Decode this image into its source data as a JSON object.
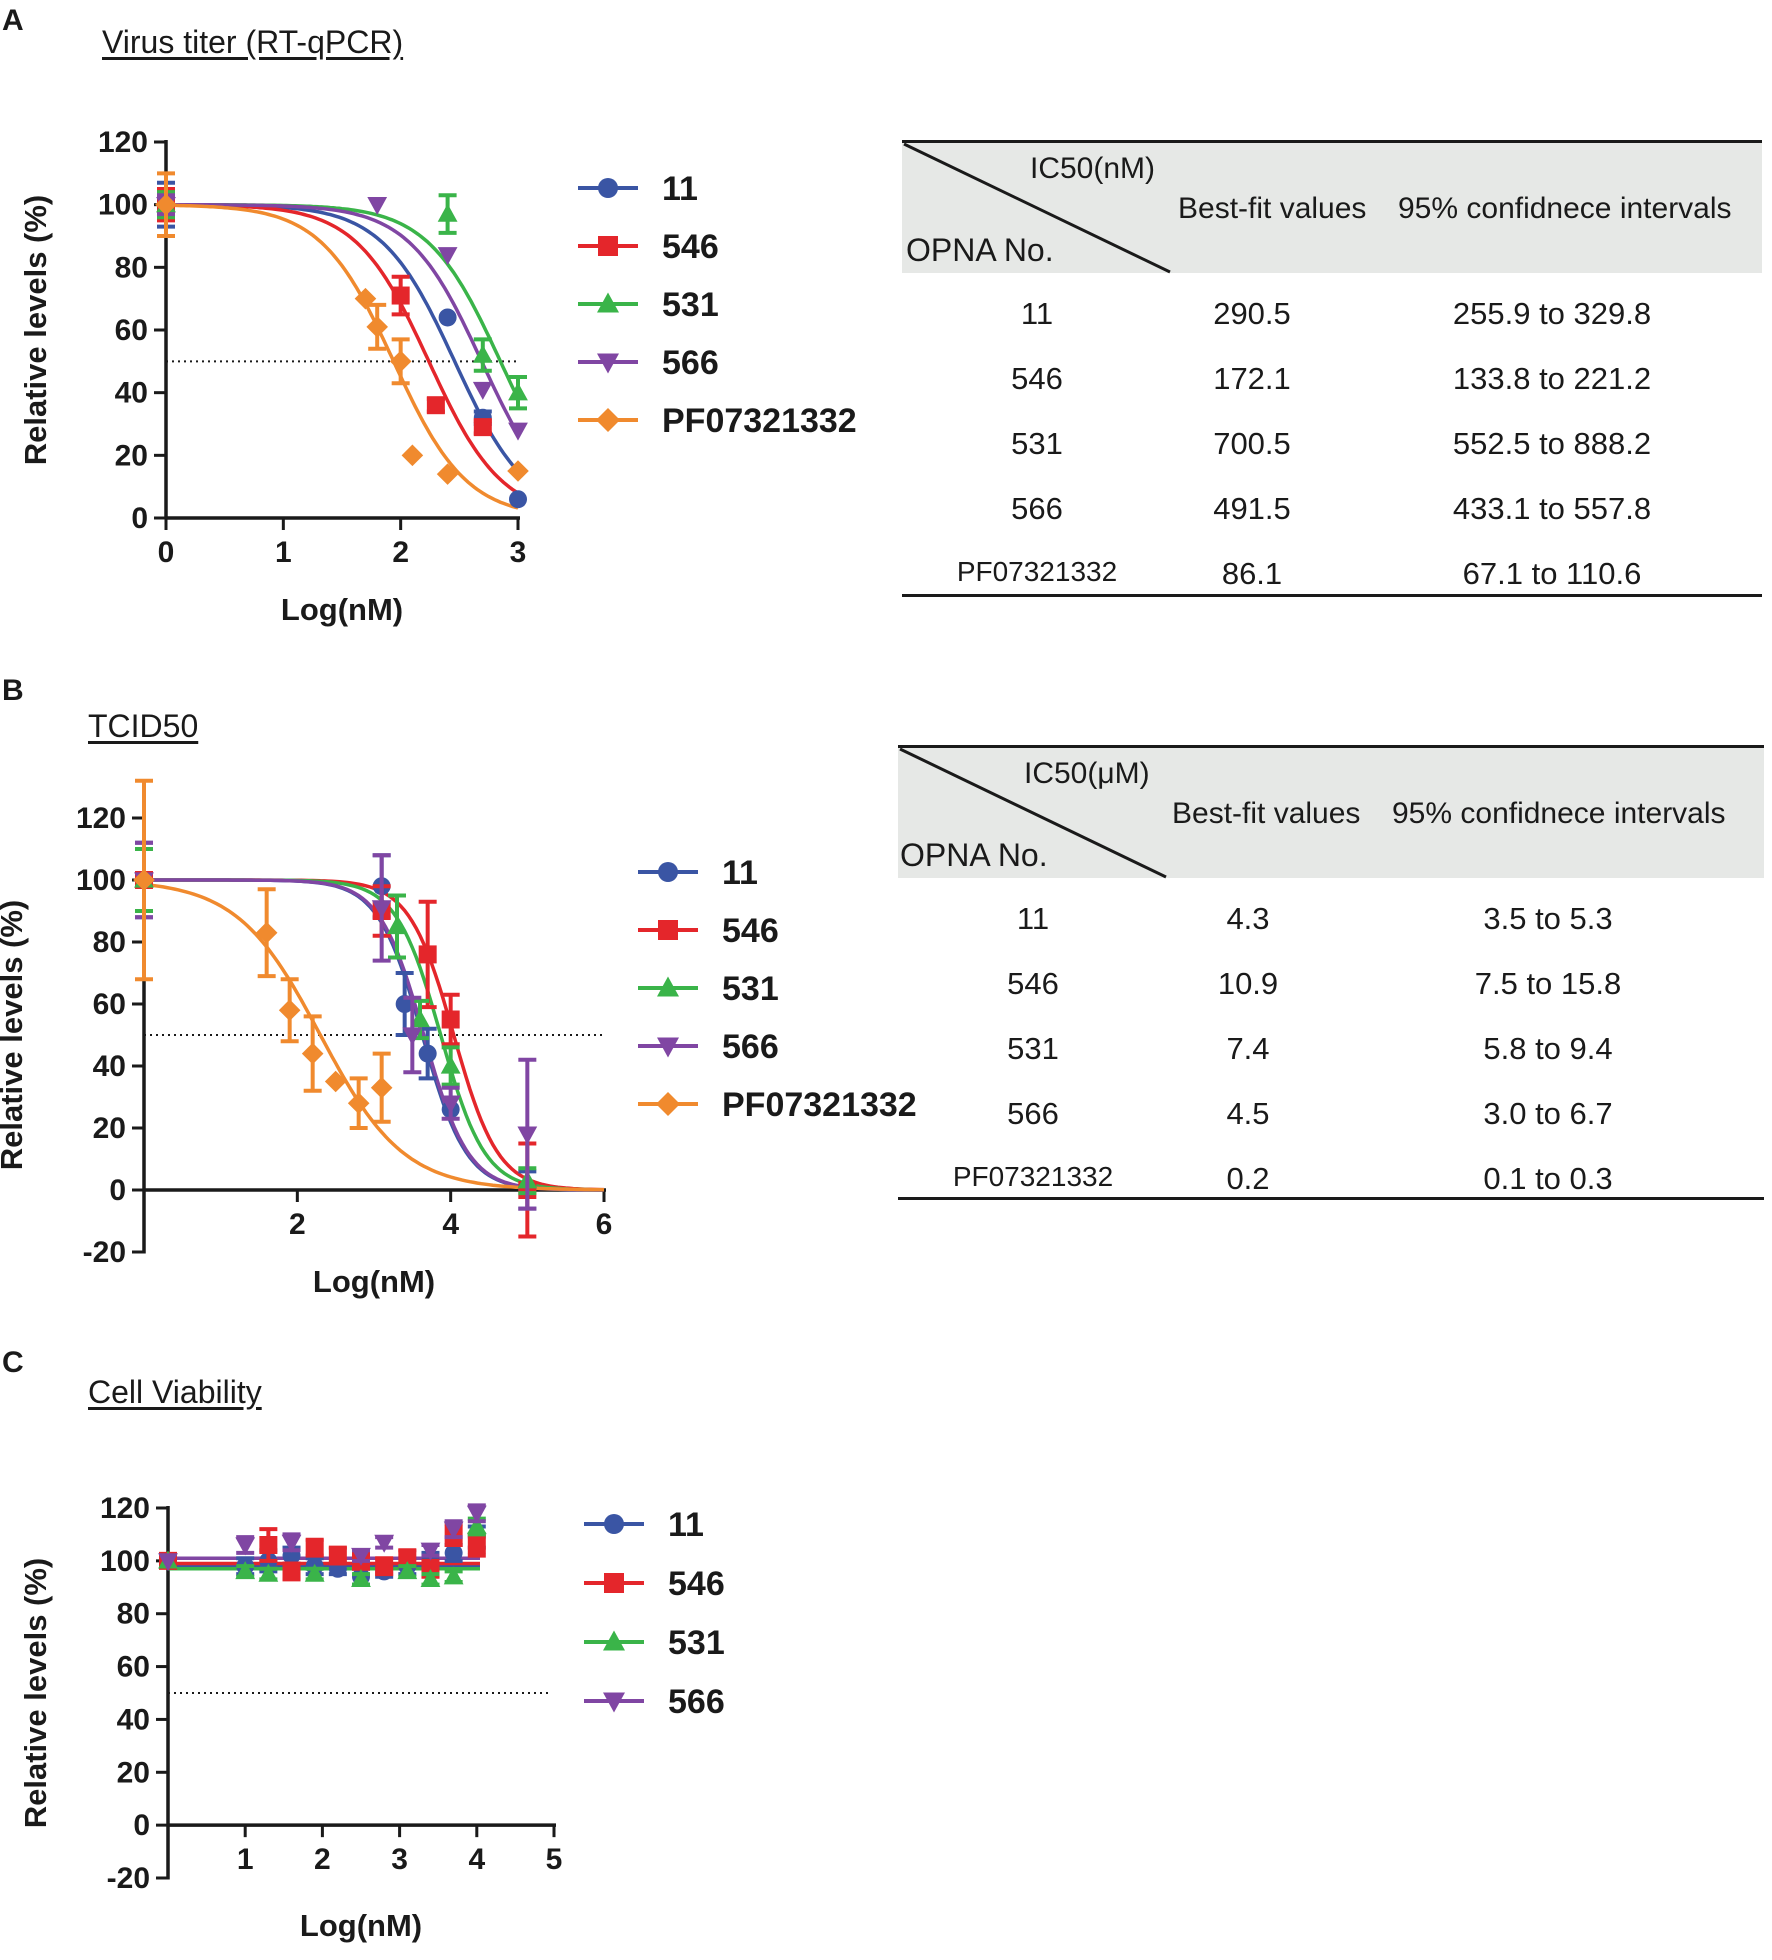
{
  "panels": {
    "A": {
      "letter": "A",
      "title": "Virus titer (RT-qPCR)"
    },
    "B": {
      "letter": "B",
      "title": "TCID50"
    },
    "C": {
      "letter": "C",
      "title": "Cell Viability"
    }
  },
  "tables": {
    "A": {
      "unit_label": "IC50(nM)",
      "row_header": "OPNA No.",
      "col_best": "Best-fit values",
      "col_ci": "95% confidnece intervals",
      "rows": [
        {
          "id": "11",
          "best": "290.5",
          "ci": "255.9 to 329.8"
        },
        {
          "id": "546",
          "best": "172.1",
          "ci": "133.8 to 221.2"
        },
        {
          "id": "531",
          "best": "700.5",
          "ci": "552.5 to 888.2"
        },
        {
          "id": "566",
          "best": "491.5",
          "ci": "433.1 to 557.8"
        },
        {
          "id": "PF07321332",
          "best": "86.1",
          "ci": "67.1 to 110.6"
        }
      ]
    },
    "B": {
      "unit_label": "IC50(μM)",
      "row_header": "OPNA No.",
      "col_best": "Best-fit values",
      "col_ci": "95% confidnece intervals",
      "rows": [
        {
          "id": "11",
          "best": "4.3",
          "ci": "3.5 to 5.3"
        },
        {
          "id": "546",
          "best": "10.9",
          "ci": "7.5 to 15.8"
        },
        {
          "id": "531",
          "best": "7.4",
          "ci": "5.8 to 9.4"
        },
        {
          "id": "566",
          "best": "4.5",
          "ci": "3.0 to 6.7"
        },
        {
          "id": "PF07321332",
          "best": "0.2",
          "ci": "0.1 to 0.3"
        }
      ]
    }
  },
  "chart_data": [
    {
      "panel": "A",
      "type": "scatter",
      "title": "Virus titer (RT-qPCR)",
      "xlabel": "Log(nM)",
      "ylabel": "Relative levels (%)",
      "xlim": [
        0,
        3
      ],
      "ylim": [
        0,
        120
      ],
      "xticks": [
        0,
        1,
        2,
        3
      ],
      "yticks": [
        0,
        20,
        40,
        60,
        80,
        100,
        120
      ],
      "reference_line": 50,
      "series": [
        {
          "name": "11",
          "color": "#3a55a4",
          "marker": "circle",
          "logIC50": 2.46,
          "points": [
            {
              "x": 0,
              "y": 100,
              "err": 7
            },
            {
              "x": 2.4,
              "y": 64,
              "err": 0
            },
            {
              "x": 2.7,
              "y": 32,
              "err": 2
            },
            {
              "x": 3.0,
              "y": 6,
              "err": 0
            }
          ]
        },
        {
          "name": "546",
          "color": "#e4262b",
          "marker": "square",
          "logIC50": 2.24,
          "points": [
            {
              "x": 0,
              "y": 100,
              "err": 5
            },
            {
              "x": 2.0,
              "y": 71,
              "err": 6
            },
            {
              "x": 2.3,
              "y": 36,
              "err": 2
            },
            {
              "x": 2.7,
              "y": 29,
              "err": 2
            }
          ]
        },
        {
          "name": "531",
          "color": "#3ab449",
          "marker": "triangle-up",
          "logIC50": 2.85,
          "points": [
            {
              "x": 0,
              "y": 100,
              "err": 4
            },
            {
              "x": 2.4,
              "y": 97,
              "err": 6
            },
            {
              "x": 2.7,
              "y": 52,
              "err": 5
            },
            {
              "x": 3.0,
              "y": 40,
              "err": 5
            }
          ]
        },
        {
          "name": "566",
          "color": "#8046a3",
          "marker": "triangle-down",
          "logIC50": 2.69,
          "points": [
            {
              "x": 0,
              "y": 100,
              "err": 3
            },
            {
              "x": 1.8,
              "y": 100,
              "err": 0
            },
            {
              "x": 2.4,
              "y": 84,
              "err": 0
            },
            {
              "x": 2.7,
              "y": 41,
              "err": 0
            },
            {
              "x": 3.0,
              "y": 28,
              "err": 0
            }
          ]
        },
        {
          "name": "PF07321332",
          "color": "#f08a2e",
          "marker": "diamond",
          "logIC50": 1.94,
          "points": [
            {
              "x": 0,
              "y": 100,
              "err": 10
            },
            {
              "x": 1.7,
              "y": 70,
              "err": 0
            },
            {
              "x": 1.8,
              "y": 61,
              "err": 7
            },
            {
              "x": 2.0,
              "y": 50,
              "err": 7
            },
            {
              "x": 2.1,
              "y": 20,
              "err": 0
            },
            {
              "x": 2.4,
              "y": 14,
              "err": 0
            },
            {
              "x": 3.0,
              "y": 15,
              "err": 0
            }
          ]
        }
      ]
    },
    {
      "panel": "B",
      "type": "scatter",
      "title": "TCID50",
      "xlabel": "Log(nM)",
      "ylabel": "Relative levels (%)",
      "xlim": [
        0,
        6
      ],
      "ylim": [
        -20,
        120
      ],
      "xticks": [
        2,
        4,
        6
      ],
      "yticks": [
        -20,
        0,
        20,
        40,
        60,
        80,
        100,
        120
      ],
      "reference_line": 50,
      "series": [
        {
          "name": "11",
          "color": "#3a55a4",
          "marker": "circle",
          "logIC50": 3.63,
          "points": [
            {
              "x": 0,
              "y": 100,
              "err": 12
            },
            {
              "x": 3.1,
              "y": 98,
              "err": 10
            },
            {
              "x": 3.4,
              "y": 60,
              "err": 10
            },
            {
              "x": 3.7,
              "y": 44,
              "err": 8
            },
            {
              "x": 4.0,
              "y": 26,
              "err": 0
            },
            {
              "x": 5.0,
              "y": 0,
              "err": 6
            }
          ]
        },
        {
          "name": "546",
          "color": "#e4262b",
          "marker": "square",
          "logIC50": 4.04,
          "points": [
            {
              "x": 0,
              "y": 100,
              "err": 10
            },
            {
              "x": 3.1,
              "y": 90,
              "err": 8
            },
            {
              "x": 3.7,
              "y": 76,
              "err": 17
            },
            {
              "x": 4.0,
              "y": 55,
              "err": 8
            },
            {
              "x": 5.0,
              "y": 0,
              "err": 15
            }
          ]
        },
        {
          "name": "531",
          "color": "#3ab449",
          "marker": "triangle-up",
          "logIC50": 3.87,
          "points": [
            {
              "x": 0,
              "y": 100,
              "err": 10
            },
            {
              "x": 3.3,
              "y": 85,
              "err": 10
            },
            {
              "x": 3.6,
              "y": 55,
              "err": 6
            },
            {
              "x": 4.0,
              "y": 40,
              "err": 6
            },
            {
              "x": 5.0,
              "y": 3,
              "err": 4
            }
          ]
        },
        {
          "name": "566",
          "color": "#8046a3",
          "marker": "triangle-down",
          "logIC50": 3.65,
          "points": [
            {
              "x": 0,
              "y": 100,
              "err": 12
            },
            {
              "x": 3.1,
              "y": 91,
              "err": 17
            },
            {
              "x": 3.5,
              "y": 50,
              "err": 12
            },
            {
              "x": 4.0,
              "y": 28,
              "err": 5
            },
            {
              "x": 5.0,
              "y": 18,
              "err": 24
            }
          ]
        },
        {
          "name": "PF07321332",
          "color": "#f08a2e",
          "marker": "diamond",
          "logIC50": 2.3,
          "points": [
            {
              "x": 0,
              "y": 100,
              "err": 32
            },
            {
              "x": 1.6,
              "y": 83,
              "err": 14
            },
            {
              "x": 1.9,
              "y": 58,
              "err": 10
            },
            {
              "x": 2.2,
              "y": 44,
              "err": 12
            },
            {
              "x": 2.5,
              "y": 35,
              "err": 0
            },
            {
              "x": 2.8,
              "y": 28,
              "err": 8
            },
            {
              "x": 3.1,
              "y": 33,
              "err": 11
            }
          ]
        }
      ]
    },
    {
      "panel": "C",
      "type": "scatter",
      "title": "Cell Viability",
      "xlabel": "Log(nM)",
      "ylabel": "Relative levels (%)",
      "xlim": [
        0,
        5
      ],
      "ylim": [
        -20,
        120
      ],
      "xticks": [
        1,
        2,
        3,
        4,
        5
      ],
      "yticks": [
        -20,
        0,
        20,
        40,
        60,
        80,
        100,
        120
      ],
      "reference_line": 50,
      "series": [
        {
          "name": "11",
          "color": "#3a55a4",
          "marker": "circle",
          "fit_level": 98,
          "points": [
            {
              "x": 0,
              "y": 100,
              "err": 0
            },
            {
              "x": 1.0,
              "y": 98,
              "err": 3
            },
            {
              "x": 1.3,
              "y": 100,
              "err": 4
            },
            {
              "x": 1.6,
              "y": 102,
              "err": 3
            },
            {
              "x": 1.9,
              "y": 98,
              "err": 3
            },
            {
              "x": 2.2,
              "y": 97,
              "err": 2
            },
            {
              "x": 2.5,
              "y": 94,
              "err": 3
            },
            {
              "x": 2.8,
              "y": 96,
              "err": 2
            },
            {
              "x": 3.1,
              "y": 98,
              "err": 3
            },
            {
              "x": 3.4,
              "y": 100,
              "err": 3
            },
            {
              "x": 3.7,
              "y": 103,
              "err": 3
            },
            {
              "x": 4.0,
              "y": 109,
              "err": 4
            }
          ]
        },
        {
          "name": "546",
          "color": "#e4262b",
          "marker": "square",
          "fit_level": 99,
          "points": [
            {
              "x": 0,
              "y": 100,
              "err": 0
            },
            {
              "x": 1.3,
              "y": 106,
              "err": 6
            },
            {
              "x": 1.6,
              "y": 96,
              "err": 3
            },
            {
              "x": 1.9,
              "y": 105,
              "err": 3
            },
            {
              "x": 2.2,
              "y": 102,
              "err": 3
            },
            {
              "x": 2.5,
              "y": 100,
              "err": 3
            },
            {
              "x": 2.8,
              "y": 98,
              "err": 3
            },
            {
              "x": 3.1,
              "y": 101,
              "err": 3
            },
            {
              "x": 3.4,
              "y": 97,
              "err": 3
            },
            {
              "x": 3.7,
              "y": 110,
              "err": 4
            },
            {
              "x": 4.0,
              "y": 106,
              "err": 4
            }
          ]
        },
        {
          "name": "531",
          "color": "#3ab449",
          "marker": "triangle-up",
          "fit_level": 97,
          "points": [
            {
              "x": 0,
              "y": 100,
              "err": 0
            },
            {
              "x": 1.0,
              "y": 96,
              "err": 2
            },
            {
              "x": 1.3,
              "y": 95,
              "err": 2
            },
            {
              "x": 1.9,
              "y": 95,
              "err": 2
            },
            {
              "x": 2.5,
              "y": 93,
              "err": 2
            },
            {
              "x": 3.1,
              "y": 96,
              "err": 2
            },
            {
              "x": 3.4,
              "y": 93,
              "err": 2
            },
            {
              "x": 3.7,
              "y": 94,
              "err": 2
            },
            {
              "x": 4.0,
              "y": 113,
              "err": 3
            }
          ]
        },
        {
          "name": "566",
          "color": "#8046a3",
          "marker": "triangle-down",
          "fit_level": 101,
          "points": [
            {
              "x": 0,
              "y": 100,
              "err": 0
            },
            {
              "x": 1.0,
              "y": 106,
              "err": 3
            },
            {
              "x": 1.6,
              "y": 107,
              "err": 3
            },
            {
              "x": 2.5,
              "y": 102,
              "err": 2
            },
            {
              "x": 2.8,
              "y": 107,
              "err": 2
            },
            {
              "x": 3.4,
              "y": 104,
              "err": 2
            },
            {
              "x": 3.7,
              "y": 112,
              "err": 3
            },
            {
              "x": 4.0,
              "y": 118,
              "err": 3
            }
          ]
        }
      ]
    }
  ]
}
